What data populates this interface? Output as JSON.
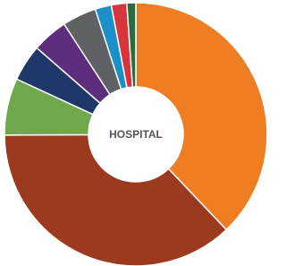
{
  "chart_data": {
    "type": "donut",
    "center_label": "HOSPITAL",
    "values": [
      37.9,
      37,
      7,
      4.5,
      4.4,
      4.2,
      2,
      1.9,
      1.1
    ],
    "colors": [
      "#ef7d22",
      "#9c3a1f",
      "#6fa84a",
      "#1f3869",
      "#5e2e7e",
      "#5f6165",
      "#1d8fc8",
      "#d7343c",
      "#2f6b3a"
    ]
  }
}
